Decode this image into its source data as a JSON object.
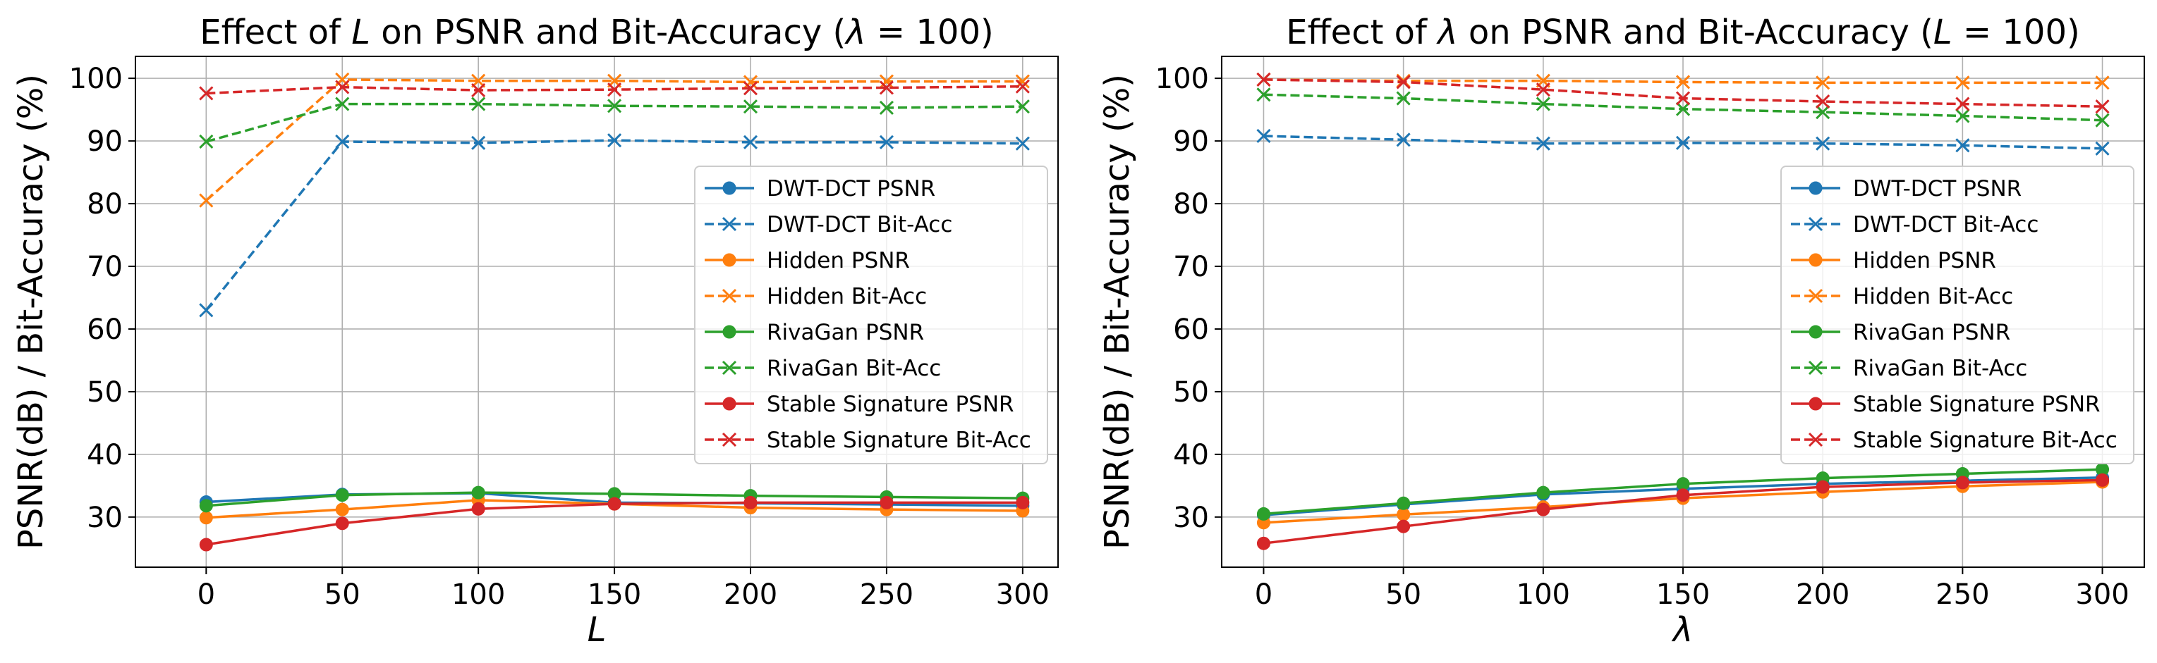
{
  "chart_data": [
    {
      "type": "line",
      "title": "Effect of L on PSNR and Bit-Accuracy (λ = 100)",
      "title_parts": {
        "prefix": "Effect of ",
        "symbol": "L",
        "middle": " on PSNR and Bit-Accuracy (",
        "cond_symbol": "λ",
        "cond_rest": " = 100)"
      },
      "xlabel": "L",
      "ylabel": "PSNR(dB) / Bit-Accuracy (%)",
      "x": [
        0,
        50,
        100,
        150,
        200,
        250,
        300
      ],
      "xlim": [
        -26,
        313
      ],
      "ylim": [
        22,
        103.5
      ],
      "xticks": [
        0,
        50,
        100,
        150,
        200,
        250,
        300
      ],
      "yticks": [
        30,
        40,
        50,
        60,
        70,
        80,
        90,
        100
      ],
      "grid": true,
      "legend_position": "center-right",
      "series": [
        {
          "name": "DWT-DCT PSNR",
          "color": "#1f77b4",
          "linestyle": "solid",
          "marker": "circle",
          "values": [
            32.4,
            33.6,
            33.8,
            32.3,
            32.2,
            32.0,
            31.8
          ]
        },
        {
          "name": "DWT-DCT Bit-Acc",
          "color": "#1f77b4",
          "linestyle": "dashed",
          "marker": "x",
          "values": [
            63.0,
            89.9,
            89.7,
            90.1,
            89.8,
            89.8,
            89.6
          ]
        },
        {
          "name": "Hidden PSNR",
          "color": "#ff7f0e",
          "linestyle": "solid",
          "marker": "circle",
          "values": [
            29.9,
            31.2,
            32.7,
            32.1,
            31.5,
            31.2,
            31.0
          ]
        },
        {
          "name": "Hidden Bit-Acc",
          "color": "#ff7f0e",
          "linestyle": "dashed",
          "marker": "x",
          "values": [
            80.5,
            99.8,
            99.6,
            99.6,
            99.4,
            99.5,
            99.5
          ]
        },
        {
          "name": "RivaGan PSNR",
          "color": "#2ca02c",
          "linestyle": "solid",
          "marker": "circle",
          "values": [
            31.8,
            33.5,
            33.9,
            33.7,
            33.4,
            33.2,
            33.0
          ]
        },
        {
          "name": "RivaGan Bit-Acc",
          "color": "#2ca02c",
          "linestyle": "dashed",
          "marker": "x",
          "values": [
            89.9,
            95.9,
            95.9,
            95.6,
            95.5,
            95.3,
            95.5
          ]
        },
        {
          "name": "Stable Signature PSNR",
          "color": "#d62728",
          "linestyle": "solid",
          "marker": "circle",
          "values": [
            25.6,
            29.0,
            31.3,
            32.1,
            32.3,
            32.3,
            32.3
          ]
        },
        {
          "name": "Stable Signature Bit-Acc",
          "color": "#d62728",
          "linestyle": "dashed",
          "marker": "x",
          "values": [
            97.6,
            98.6,
            98.1,
            98.2,
            98.4,
            98.5,
            98.7
          ]
        }
      ]
    },
    {
      "type": "line",
      "title": "Effect of λ on PSNR and Bit-Accuracy (L = 100)",
      "title_parts": {
        "prefix": "Effect of ",
        "symbol": "λ",
        "middle": " on PSNR and Bit-Accuracy (",
        "cond_symbol": "L",
        "cond_rest": " = 100)"
      },
      "xlabel": "λ",
      "ylabel": "PSNR(dB) / Bit-Accuracy (%)",
      "x": [
        0,
        50,
        100,
        150,
        200,
        250,
        300
      ],
      "xlim": [
        -15,
        315
      ],
      "ylim": [
        22,
        103.5
      ],
      "xticks": [
        0,
        50,
        100,
        150,
        200,
        250,
        300
      ],
      "yticks": [
        30,
        40,
        50,
        60,
        70,
        80,
        90,
        100
      ],
      "grid": true,
      "legend_position": "center-right",
      "series": [
        {
          "name": "DWT-DCT PSNR",
          "color": "#1f77b4",
          "linestyle": "solid",
          "marker": "circle",
          "values": [
            30.3,
            32.0,
            33.6,
            34.5,
            35.3,
            35.8,
            36.3
          ]
        },
        {
          "name": "DWT-DCT Bit-Acc",
          "color": "#1f77b4",
          "linestyle": "dashed",
          "marker": "x",
          "values": [
            90.8,
            90.2,
            89.6,
            89.7,
            89.6,
            89.3,
            88.8
          ]
        },
        {
          "name": "Hidden PSNR",
          "color": "#ff7f0e",
          "linestyle": "solid",
          "marker": "circle",
          "values": [
            29.1,
            30.4,
            31.6,
            33.0,
            34.0,
            34.9,
            35.6
          ]
        },
        {
          "name": "Hidden Bit-Acc",
          "color": "#ff7f0e",
          "linestyle": "dashed",
          "marker": "x",
          "values": [
            99.8,
            99.6,
            99.6,
            99.4,
            99.3,
            99.3,
            99.3
          ]
        },
        {
          "name": "RivaGan PSNR",
          "color": "#2ca02c",
          "linestyle": "solid",
          "marker": "circle",
          "values": [
            30.5,
            32.2,
            33.9,
            35.3,
            36.2,
            36.9,
            37.6
          ]
        },
        {
          "name": "RivaGan Bit-Acc",
          "color": "#2ca02c",
          "linestyle": "dashed",
          "marker": "x",
          "values": [
            97.4,
            96.8,
            95.9,
            95.1,
            94.6,
            94.0,
            93.3
          ]
        },
        {
          "name": "Stable Signature PSNR",
          "color": "#d62728",
          "linestyle": "solid",
          "marker": "circle",
          "values": [
            25.8,
            28.5,
            31.2,
            33.5,
            34.8,
            35.5,
            35.9
          ]
        },
        {
          "name": "Stable Signature Bit-Acc",
          "color": "#d62728",
          "linestyle": "dashed",
          "marker": "x",
          "values": [
            99.8,
            99.4,
            98.2,
            96.8,
            96.3,
            95.9,
            95.5
          ]
        }
      ]
    }
  ]
}
